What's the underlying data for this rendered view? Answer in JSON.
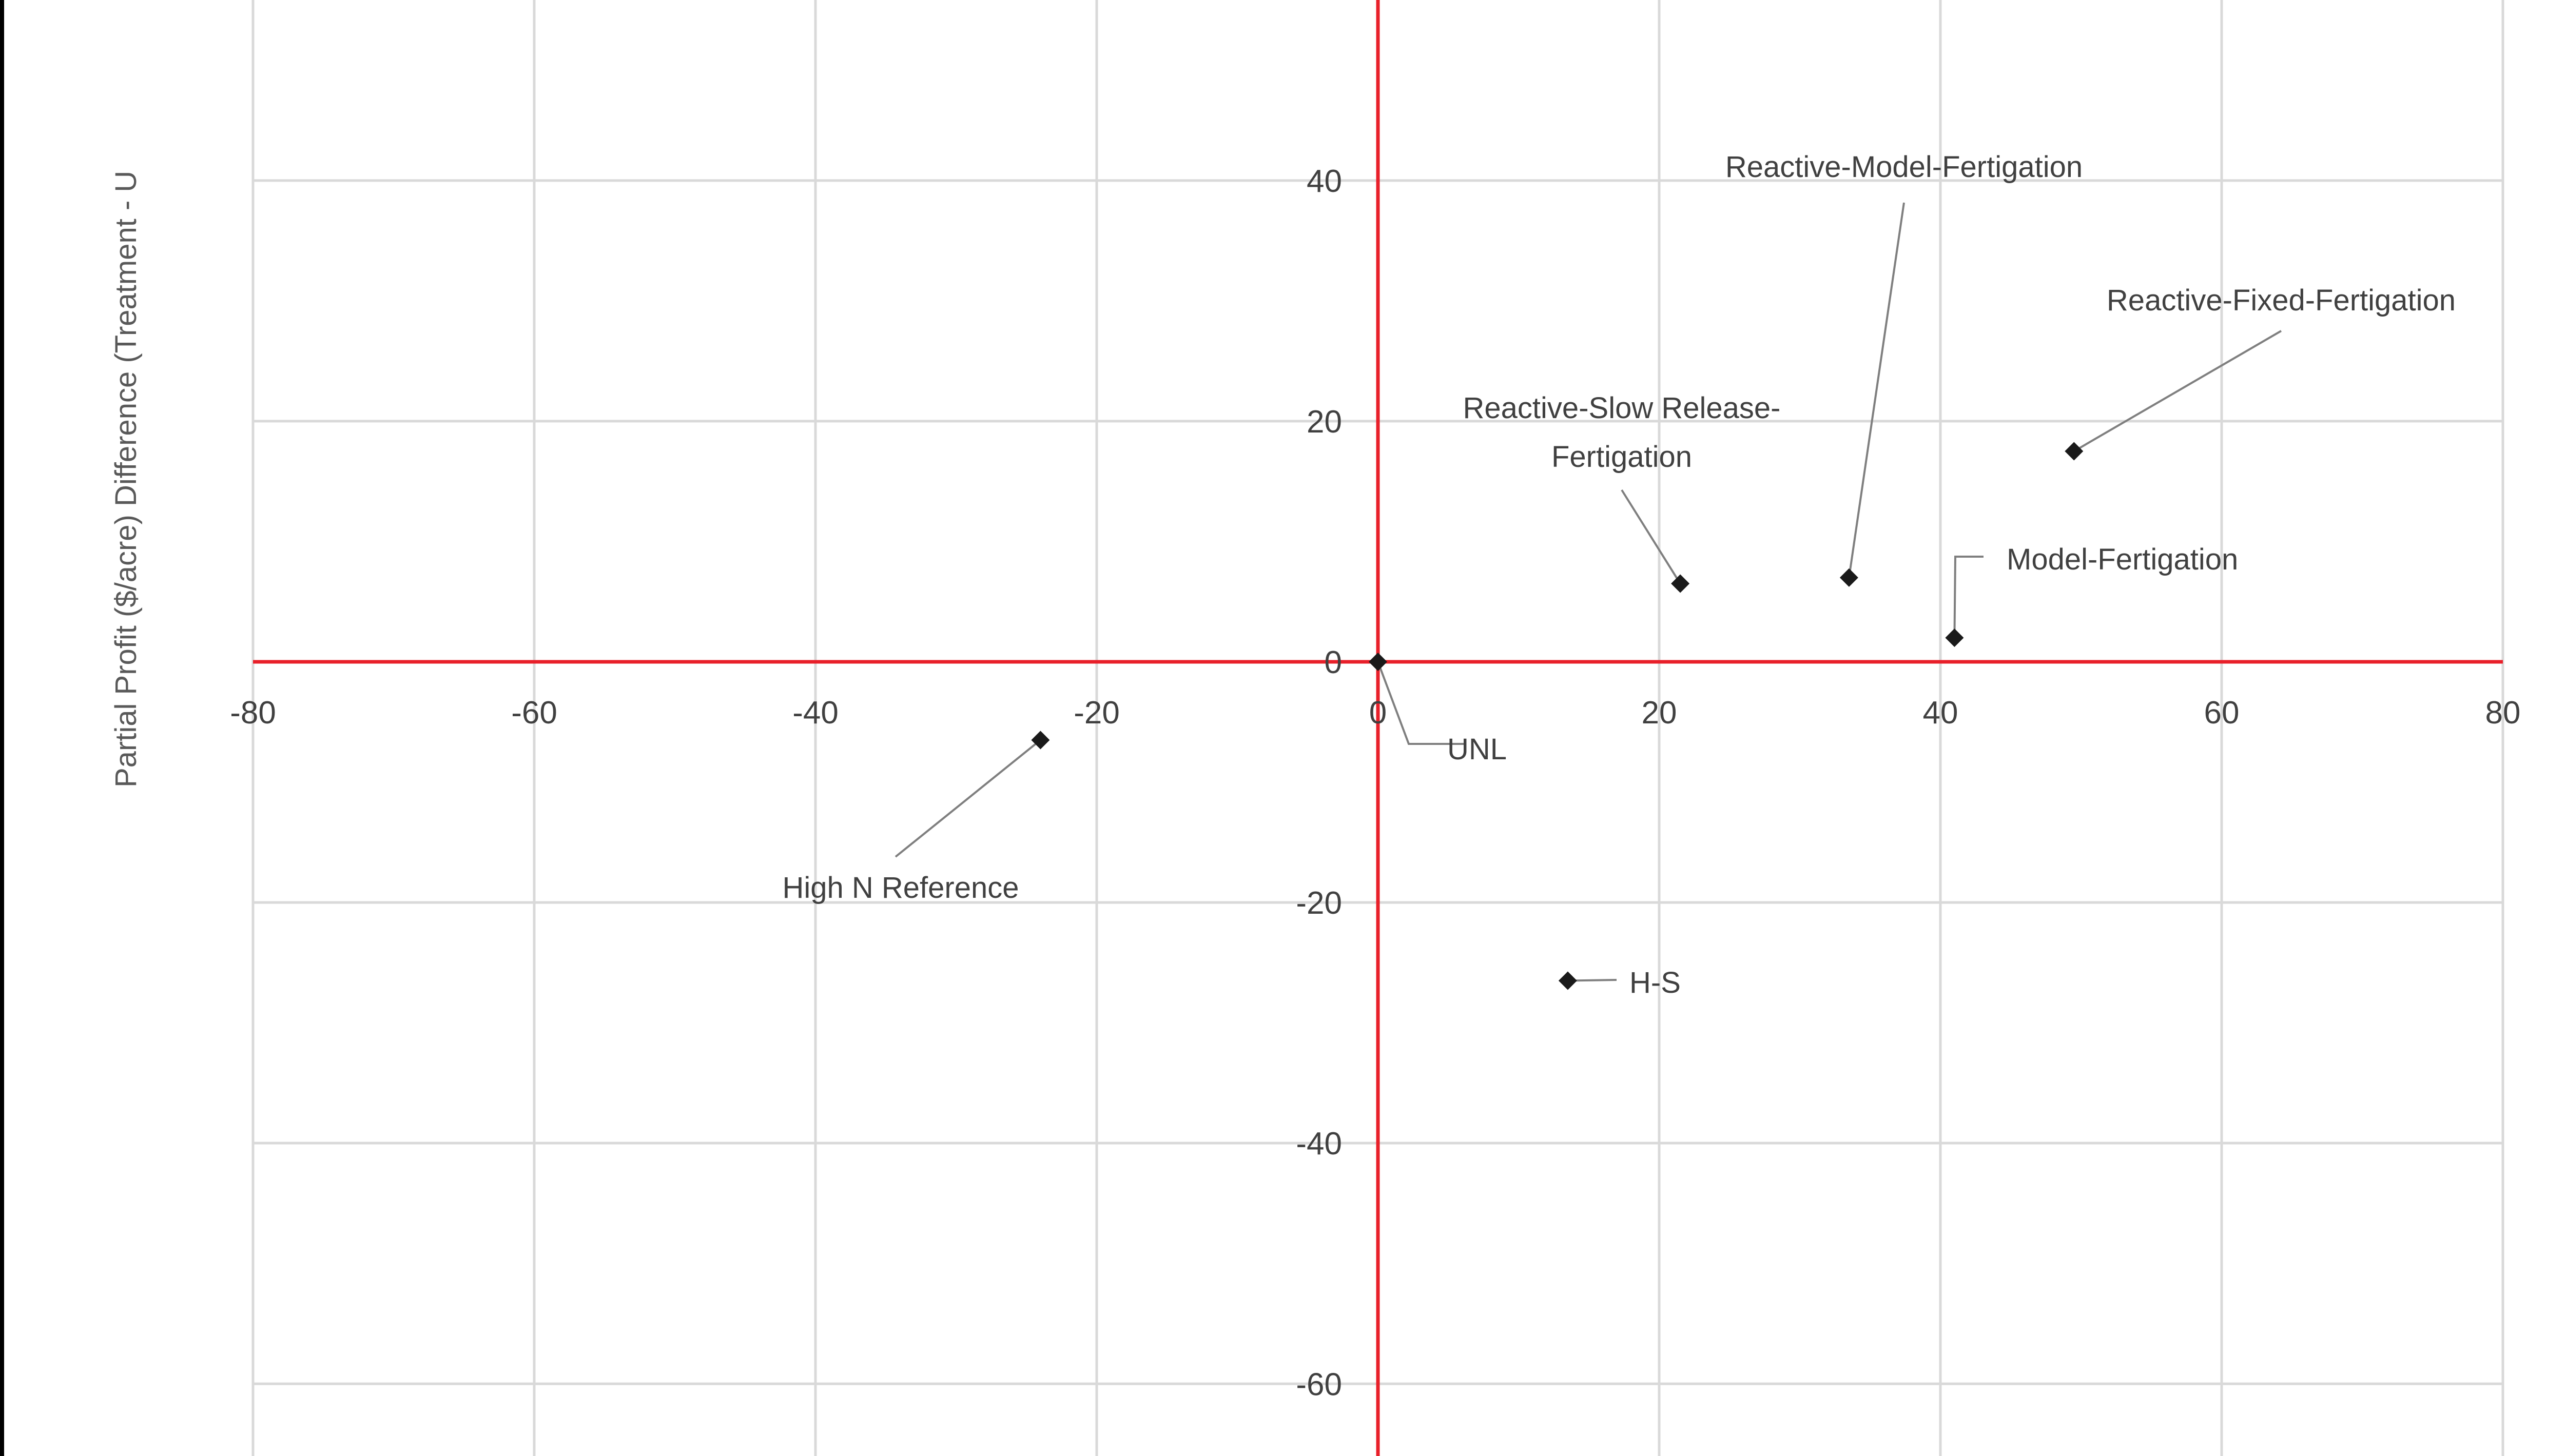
{
  "chart_data": {
    "type": "scatter",
    "ylabel": "Partial Profit ($/acre) Difference (Treatment - U",
    "xlim": [
      -80,
      80
    ],
    "ylim": [
      -66,
      55
    ],
    "x_ticks": [
      -80,
      -60,
      -40,
      -20,
      0,
      20,
      40,
      60,
      80
    ],
    "y_ticks": [
      -60,
      -40,
      -20,
      0,
      20,
      40
    ],
    "x_tick_labels": [
      "-80",
      "-60",
      "-40",
      "-20",
      "0",
      "20",
      "40",
      "60",
      "80"
    ],
    "y_tick_labels": [
      "-60",
      "-40",
      "-20",
      "0",
      "20",
      "40"
    ],
    "grid": true,
    "axis_color": "#e8202a",
    "grid_color": "#d9d9d9",
    "marker_color": "#1a1a1a",
    "marker": "diamond",
    "points": [
      {
        "label": "UNL",
        "x": 0,
        "y": 0
      },
      {
        "label": "High N Reference",
        "x": -24,
        "y": -6.5
      },
      {
        "label": "H-S",
        "x": 13.5,
        "y": -26.5
      },
      {
        "label": "Reactive-Slow Release-Fertigation",
        "x": 21.5,
        "y": 6.5
      },
      {
        "label": "Reactive-Model-Fertigation",
        "x": 33.5,
        "y": 7
      },
      {
        "label": "Model-Fertigation",
        "x": 41,
        "y": 2
      },
      {
        "label": "Reactive-Fixed-Fertigation",
        "x": 49.5,
        "y": 17.5
      }
    ]
  }
}
